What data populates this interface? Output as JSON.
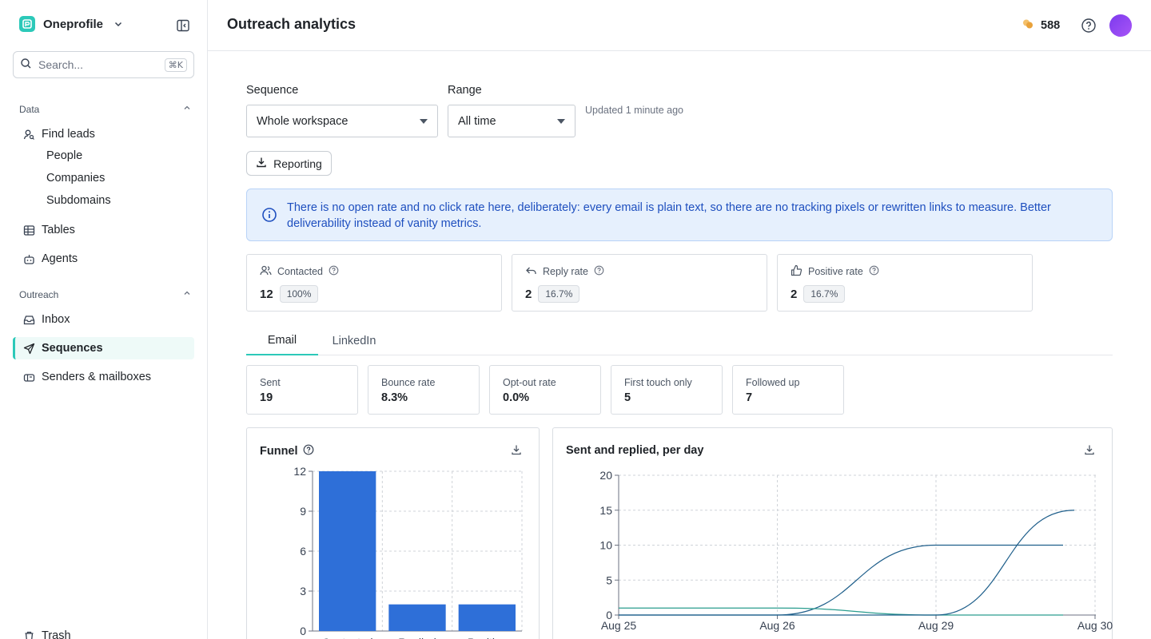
{
  "sidebar": {
    "workspace": "Oneprofile",
    "search": {
      "placeholder": "Search...",
      "shortcut": "⌘K"
    },
    "sections": [
      {
        "label": "Data"
      },
      {
        "label": "Outreach"
      }
    ],
    "items": {
      "find_leads": "Find leads",
      "people": "People",
      "companies": "Companies",
      "subdomains": "Subdomains",
      "tables": "Tables",
      "agents": "Agents",
      "inbox": "Inbox",
      "sequences": "Sequences",
      "senders": "Senders & mailboxes",
      "trash": "Trash"
    },
    "active_item": "sequences"
  },
  "header": {
    "title": "Outreach analytics",
    "credits": "588"
  },
  "filters": {
    "sequence_label": "Sequence",
    "sequence_value": "Whole workspace",
    "range_label": "Range",
    "range_value": "All time",
    "updated": "Updated 1 minute ago",
    "reporting_label": "Reporting"
  },
  "info": {
    "text": "There is no open rate and no click rate here, deliberately: every email is plain text, so there are no tracking pixels or rewritten links to measure. Better deliverability instead of vanity metrics."
  },
  "stats": [
    {
      "label": "Contacted",
      "value": "12",
      "pill": "100%",
      "icon": "users-icon"
    },
    {
      "label": "Reply rate",
      "value": "2",
      "pill": "16.7%",
      "icon": "reply-icon"
    },
    {
      "label": "Positive rate",
      "value": "2",
      "pill": "16.7%",
      "icon": "thumbs-up-icon"
    }
  ],
  "tabs": [
    {
      "label": "Email",
      "active": true
    },
    {
      "label": "LinkedIn",
      "active": false
    }
  ],
  "metrics": [
    {
      "label": "Sent",
      "value": "19"
    },
    {
      "label": "Bounce rate",
      "value": "8.3%"
    },
    {
      "label": "Opt-out rate",
      "value": "0.0%"
    },
    {
      "label": "First touch only",
      "value": "5"
    },
    {
      "label": "Followed up",
      "value": "7"
    }
  ],
  "colors": {
    "accent": "#2cc9b9",
    "bar": "#2e6fd8",
    "line_sent": "#1f5f8b",
    "line_replied": "#2a9d8f"
  },
  "chart_data": [
    {
      "type": "bar",
      "title": "Funnel",
      "categories": [
        "Contacted",
        "Replied",
        "Positive"
      ],
      "values": [
        12,
        2,
        2
      ],
      "yticks": [
        0,
        3,
        6,
        9,
        12
      ],
      "ylim": [
        0,
        12
      ],
      "grid": true
    },
    {
      "type": "line",
      "title": "Sent and replied, per day",
      "x": [
        "Aug 25",
        "Aug 26",
        "Aug 29",
        "Aug 30"
      ],
      "yticks": [
        0,
        5,
        10,
        15,
        20
      ],
      "ylim": [
        0,
        20
      ],
      "grid": true,
      "series": [
        {
          "values": [
            0,
            0,
            10,
            10
          ]
        },
        {
          "values": [
            1,
            1,
            0,
            0
          ]
        },
        {
          "values": [
            0,
            0,
            0,
            15
          ]
        }
      ]
    }
  ]
}
